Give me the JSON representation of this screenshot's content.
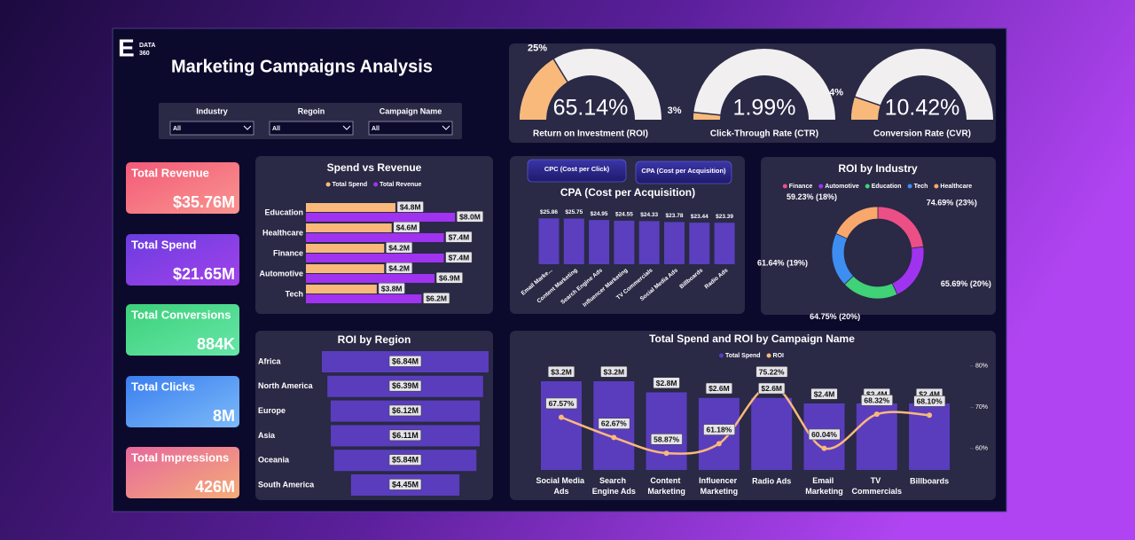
{
  "logo": {
    "letter": "E",
    "line1": "DATA",
    "line2": "360"
  },
  "title": "Marketing Campaigns Analysis",
  "filters": [
    {
      "label": "Industry",
      "value": "All"
    },
    {
      "label": "Regoin",
      "value": "All"
    },
    {
      "label": "Campaign Name",
      "value": "All"
    }
  ],
  "kpis": [
    {
      "label": "Total Revenue",
      "value": "$35.76M"
    },
    {
      "label": "Total Spend",
      "value": "$21.65M"
    },
    {
      "label": "Total Conversions",
      "value": "884K"
    },
    {
      "label": "Total Clicks",
      "value": "8M"
    },
    {
      "label": "Total Impressions",
      "value": "426M"
    }
  ],
  "buttons": [
    "CPC (Cost per Click)",
    "CPA (Cost per Acquisition)"
  ],
  "chart_data": [
    {
      "type": "gauge",
      "title": "Return on Investment (ROI)",
      "values": [
        65.14
      ],
      "value_labels": [
        "65.14%"
      ],
      "annotations": [
        "25%"
      ],
      "ylim": [
        0,
        200
      ],
      "color": "#f9b97a"
    },
    {
      "type": "gauge",
      "title": "Click-Through Rate (CTR)",
      "values": [
        1.99
      ],
      "value_labels": [
        "1.99%"
      ],
      "annotations": [
        "3%"
      ],
      "ylim": [
        0,
        60
      ],
      "color": "#f9b97a"
    },
    {
      "type": "gauge",
      "title": "Conversion Rate (CVR)",
      "values": [
        10.42
      ],
      "value_labels": [
        "10.42%"
      ],
      "annotations": [
        "4%"
      ],
      "ylim": [
        0,
        100
      ],
      "color": "#f9b97a"
    },
    {
      "type": "bar",
      "orientation": "horizontal",
      "title": "Spend vs Revenue",
      "categories": [
        "Education",
        "Healthcare",
        "Finance",
        "Automotive",
        "Tech"
      ],
      "series": [
        {
          "name": "Total Spend",
          "color": "#f9b97a",
          "values": [
            4.8,
            4.6,
            4.2,
            4.2,
            3.8
          ],
          "value_labels": [
            "$4.8M",
            "$4.6M",
            "$4.2M",
            "$4.2M",
            "$3.8M"
          ]
        },
        {
          "name": "Total Revenue",
          "color": "#a033f0",
          "values": [
            8.0,
            7.4,
            7.4,
            6.9,
            6.2
          ],
          "value_labels": [
            "$8.0M",
            "$7.4M",
            "$7.4M",
            "$6.9M",
            "$6.2M"
          ]
        }
      ],
      "xlim": [
        0,
        8.8
      ]
    },
    {
      "type": "column",
      "title": "CPA (Cost per Acquisition)",
      "categories": [
        "Email Marke...",
        "Content Marketing",
        "Search Engine Ads",
        "Influencer Marketing",
        "TV Commercials",
        "Social Media Ads",
        "Billboards",
        "Radio Ads"
      ],
      "values": [
        25.86,
        25.75,
        24.95,
        24.55,
        24.33,
        23.78,
        23.44,
        23.39
      ],
      "value_labels": [
        "$25.86",
        "$25.75",
        "$24.95",
        "$24.55",
        "$24.33",
        "$23.78",
        "$23.44",
        "$23.39"
      ],
      "color": "#5b3fbf",
      "ylim": [
        0,
        26
      ]
    },
    {
      "type": "donut",
      "title": "ROI by Industry",
      "categories": [
        "Finance",
        "Automotive",
        "Education",
        "Tech",
        "Healthcare"
      ],
      "values": [
        74.69,
        65.69,
        64.75,
        61.64,
        59.23
      ],
      "value_labels": [
        "74.69% (23%)",
        "65.69% (20%)",
        "64.75% (20%)",
        "61.64% (19%)",
        "59.23% (18%)"
      ],
      "colors": [
        "#ec4f86",
        "#a033f0",
        "#3fd277",
        "#3e8ef2",
        "#f9a76b"
      ]
    },
    {
      "type": "funnel",
      "title": "ROI by Region",
      "categories": [
        "Africa",
        "North America",
        "Europe",
        "Asia",
        "Oceania",
        "South America"
      ],
      "values": [
        6.84,
        6.39,
        6.12,
        6.11,
        5.84,
        4.45
      ],
      "value_labels": [
        "$6.84M",
        "$6.39M",
        "$6.12M",
        "$6.11M",
        "$5.84M",
        "$4.45M"
      ],
      "color": "#5a3dbd",
      "xlim": [
        0,
        6.84
      ]
    },
    {
      "type": "combo",
      "title": "Total Spend and ROI by Campaign Name",
      "categories": [
        "Social Media Ads",
        "Search Engine Ads",
        "Content Marketing",
        "Influencer Marketing",
        "Radio Ads",
        "Email Marketing",
        "TV Commercials",
        "Billboards"
      ],
      "series": [
        {
          "name": "Total Spend",
          "color": "#5a3dbd",
          "values": [
            3.2,
            3.2,
            2.8,
            2.6,
            2.6,
            2.4,
            2.4,
            2.4
          ],
          "value_labels": [
            "$3.2M",
            "$3.2M",
            "$2.8M",
            "$2.6M",
            "$2.6M",
            "$2.4M",
            "$2.4M",
            "$2.4M"
          ]
        },
        {
          "name": "ROI",
          "color": "#f9b97a",
          "axis": "y2",
          "values": [
            67.57,
            62.67,
            58.87,
            61.18,
            75.22,
            60.04,
            68.32,
            68.1
          ],
          "value_labels": [
            "67.57%",
            "62.67%",
            "58.87%",
            "61.18%",
            "75.22%",
            "60.04%",
            "68.32%",
            "68.10%"
          ]
        }
      ],
      "ylim": [
        0,
        4
      ],
      "y2lim": [
        54.8,
        81.7
      ],
      "y2ticks": [
        {
          "value": 60,
          "label": "60%"
        },
        {
          "value": 70,
          "label": "70%"
        },
        {
          "value": 80,
          "label": "80%"
        }
      ]
    }
  ]
}
